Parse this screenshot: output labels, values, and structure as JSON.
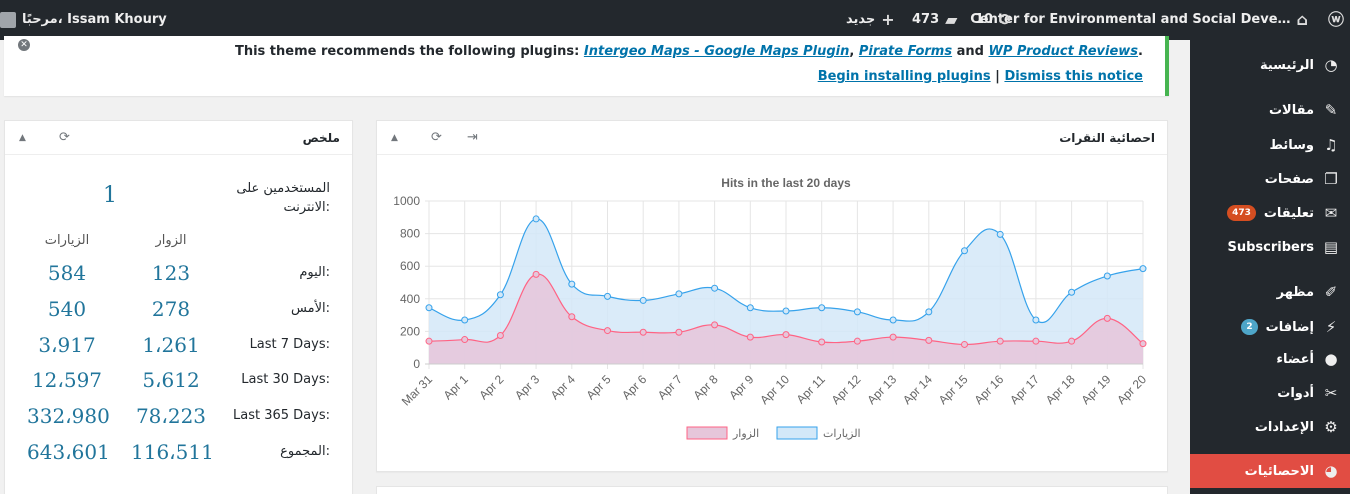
{
  "adminbar": {
    "site_title": "Center for Environmental and Social Deve…",
    "updates_count": "10",
    "comments_count": "473",
    "new_label": "جديد",
    "greeting": "مرحبًا، Issam Khoury"
  },
  "sidebar": {
    "items": [
      {
        "label": "الرئيسية",
        "icon": "dashboard-icon",
        "glyph": "◔"
      },
      {
        "label": "مقالات",
        "icon": "pin-icon",
        "glyph": "✎"
      },
      {
        "label": "وسائط",
        "icon": "media-icon",
        "glyph": "♫"
      },
      {
        "label": "صفحات",
        "icon": "pages-icon",
        "glyph": "❐"
      },
      {
        "label": "تعليقات",
        "icon": "comment-icon",
        "glyph": "✉",
        "badge": "473"
      },
      {
        "label": "Subscribers",
        "icon": "subscribers-icon",
        "glyph": "▤"
      },
      {
        "label": "مظهر",
        "icon": "appearance-icon",
        "glyph": "✐"
      },
      {
        "label": "إضافات",
        "icon": "plugins-icon",
        "glyph": "⚡",
        "badge": "2"
      },
      {
        "label": "أعضاء",
        "icon": "users-icon",
        "glyph": "●"
      },
      {
        "label": "أدوات",
        "icon": "tools-icon",
        "glyph": "✂"
      },
      {
        "label": "الإعدادات",
        "icon": "settings-icon",
        "glyph": "⚙"
      },
      {
        "label": "الاحصائيات",
        "icon": "statistics-icon",
        "glyph": "◕"
      }
    ]
  },
  "notice": {
    "prefix": "This theme recommends the following plugins:",
    "plugin1": "Intergeo Maps - Google Maps Plugin",
    "sep1": ",",
    "plugin2": "Pirate Forms",
    "and": "and",
    "plugin3": "WP Product Reviews",
    "period": ".",
    "install_link": "Begin installing plugins",
    "divider": "|",
    "dismiss_link": "Dismiss this notice"
  },
  "summary": {
    "title": "ملخص",
    "online_label": "المستخدمين على الانترنت:",
    "online_value": "1",
    "col_visitors": "الزوار",
    "col_visits": "الزيارات",
    "rows": [
      {
        "label": "اليوم:",
        "visitors": "123",
        "visits": "584"
      },
      {
        "label": "الأمس:",
        "visitors": "278",
        "visits": "540"
      },
      {
        "label": "Last 7 Days:",
        "visitors": "1،261",
        "visits": "3،917"
      },
      {
        "label": "Last 30 Days:",
        "visitors": "5،612",
        "visits": "12،597"
      },
      {
        "label": "Last 365 Days:",
        "visitors": "78،223",
        "visits": "332،980"
      },
      {
        "label": "المجموع:",
        "visitors": "116،511",
        "visits": "643،601"
      }
    ]
  },
  "hits": {
    "title": "احصائية النقرات"
  },
  "chart_data": {
    "type": "line",
    "title": "Hits in the last 20 days",
    "categories": [
      "Mar 31",
      "Apr 1",
      "Apr 2",
      "Apr 3",
      "Apr 4",
      "Apr 5",
      "Apr 6",
      "Apr 7",
      "Apr 8",
      "Apr 9",
      "Apr 10",
      "Apr 11",
      "Apr 12",
      "Apr 13",
      "Apr 14",
      "Apr 15",
      "Apr 16",
      "Apr 17",
      "Apr 18",
      "Apr 19",
      "Apr 20"
    ],
    "ylim": [
      0,
      1000
    ],
    "yticks": [
      0,
      200,
      400,
      600,
      800,
      1000
    ],
    "grid": true,
    "legend_position": "bottom",
    "series": [
      {
        "name": "الزيارات",
        "color": "#36a2eb",
        "fill": "#d3e8f8",
        "values": [
          345,
          270,
          425,
          890,
          490,
          415,
          390,
          430,
          465,
          345,
          325,
          345,
          320,
          270,
          320,
          695,
          795,
          270,
          440,
          540,
          585
        ]
      },
      {
        "name": "الزوار",
        "color": "#ff6384",
        "fill": "#e6c6da",
        "values": [
          140,
          150,
          175,
          550,
          290,
          205,
          195,
          195,
          240,
          165,
          180,
          135,
          140,
          165,
          145,
          120,
          140,
          140,
          140,
          280,
          125
        ]
      }
    ]
  }
}
